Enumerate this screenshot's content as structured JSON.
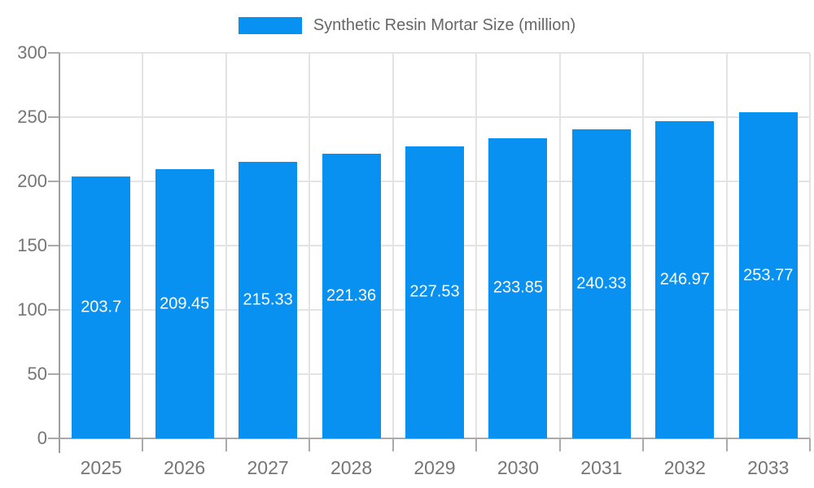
{
  "legend": {
    "label": "Synthetic Resin Mortar Size (million)",
    "swatch_color": "#0991f2"
  },
  "chart_data": {
    "type": "bar",
    "title": "Synthetic Resin Mortar Size (million)",
    "categories": [
      "2025",
      "2026",
      "2027",
      "2028",
      "2029",
      "2030",
      "2031",
      "2032",
      "2033"
    ],
    "values": [
      203.7,
      209.45,
      215.33,
      221.36,
      227.53,
      233.85,
      240.33,
      246.97,
      253.77
    ],
    "value_labels": [
      "203.7",
      "209.45",
      "215.33",
      "221.36",
      "227.53",
      "233.85",
      "240.33",
      "246.97",
      "253.77"
    ],
    "xlabel": "",
    "ylabel": "",
    "ylim": [
      0,
      300
    ],
    "ytick_interval": 50,
    "yticks": [
      "0",
      "50",
      "100",
      "150",
      "200",
      "250",
      "300"
    ],
    "grid": true,
    "legend_position": "top",
    "bar_color": "#0991f2",
    "value_label_color": "#ffffff"
  },
  "colors": {
    "bar": "#0991f2",
    "grid": "#e3e3e3",
    "axis": "#9e9e9e",
    "baseline": "#aaaaaa",
    "tick_label": "#757575",
    "legend_text": "#666666",
    "background": "#ffffff"
  }
}
